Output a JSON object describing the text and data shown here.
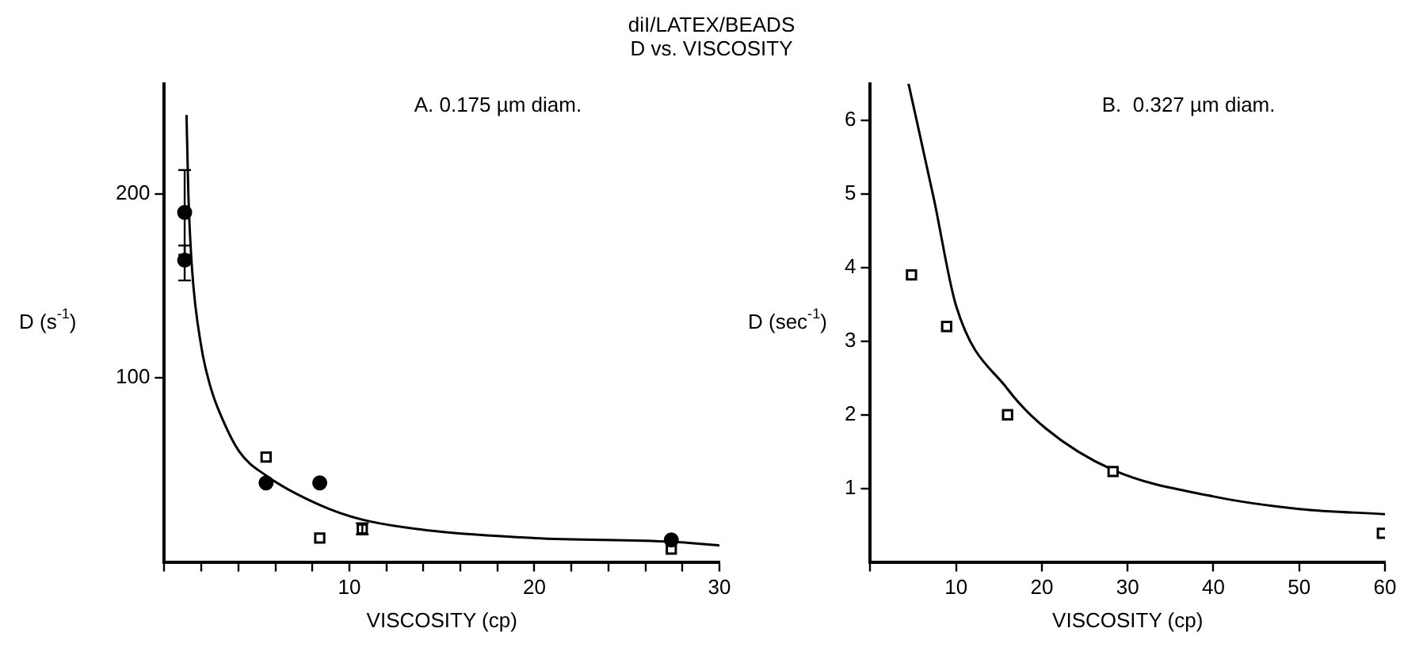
{
  "chart_data": [
    {
      "type": "scatter",
      "title": "diI/LATEX/BEADS",
      "subtitle": "D vs. VISCOSITY",
      "xlabel": "VISCOSITY (cp)",
      "ylabel": "D (s$^{-1}$)",
      "annotations": [
        "A. 0.175 µm diam."
      ],
      "xlim": [
        0,
        30
      ],
      "ylim": [
        0,
        260
      ],
      "xticks": [
        {
          "value": 0,
          "label": null
        },
        {
          "value": 2,
          "label": null
        },
        {
          "value": 4,
          "label": null
        },
        {
          "value": 6,
          "label": null
        },
        {
          "value": 8,
          "label": null
        },
        10,
        {
          "value": 12,
          "label": null
        },
        {
          "value": 14,
          "label": null
        },
        {
          "value": 16,
          "label": null
        },
        {
          "value": 18,
          "label": null
        },
        20,
        {
          "value": 22,
          "label": null
        },
        {
          "value": 24,
          "label": null
        },
        {
          "value": 26,
          "label": null
        },
        {
          "value": 28,
          "label": null
        },
        30
      ],
      "yticks": [
        100,
        200
      ],
      "series": [
        {
          "type": "scatter",
          "marker": "circle",
          "color": "#000000",
          "x": [
            1.1,
            1.1,
            5.5,
            8.4,
            27.4
          ],
          "values": [
            190,
            164,
            43,
            43,
            12
          ],
          "errors": [
            23,
            [
              153,
              172
            ],
            null,
            null,
            null
          ]
        },
        {
          "type": "scatter",
          "marker": "square",
          "color": "#000000",
          "x": [
            5.5,
            8.4,
            10.7,
            27.4
          ],
          "values": [
            57,
            13,
            18,
            7
          ],
          "errors": [
            null,
            null,
            3,
            null
          ]
        },
        {
          "type": "line",
          "marker": "none",
          "color": "#000000",
          "x": [
            1.2,
            1.3,
            1.5,
            2.0,
            2.5,
            3.0,
            4.05,
            5.5,
            8.4,
            10.7,
            14.4,
            20,
            27.4,
            30
          ],
          "values": [
            243,
            200,
            159,
            117,
            95,
            81,
            60,
            47,
            31,
            23,
            17,
            13,
            11,
            9
          ]
        }
      ]
    },
    {
      "type": "scatter",
      "xlabel": "VISCOSITY (cp)",
      "ylabel": "D (sec$^{-1}$)",
      "annotations": [
        "B.  0.327 µm diam."
      ],
      "xlim": [
        0,
        60
      ],
      "ylim": [
        0,
        6.5
      ],
      "xticks": [
        {
          "value": 0,
          "label": null
        },
        10,
        20,
        30,
        40,
        50,
        60
      ],
      "yticks": [
        1,
        2,
        3,
        4,
        5,
        6
      ],
      "series": [
        {
          "type": "scatter",
          "marker": "square",
          "color": "#000000",
          "x": [
            4.8,
            8.9,
            16.0,
            28.3,
            59.7
          ],
          "values": [
            3.9,
            3.2,
            2.0,
            1.23,
            0.39
          ]
        },
        {
          "type": "line",
          "marker": "none",
          "color": "#000000",
          "x": [
            4.45,
            7.4,
            10,
            16,
            20.4,
            28.3,
            40,
            50,
            60
          ],
          "values": [
            6.5,
            4.94,
            3.48,
            2.35,
            1.82,
            1.25,
            0.89,
            0.72,
            0.65
          ]
        }
      ]
    }
  ]
}
